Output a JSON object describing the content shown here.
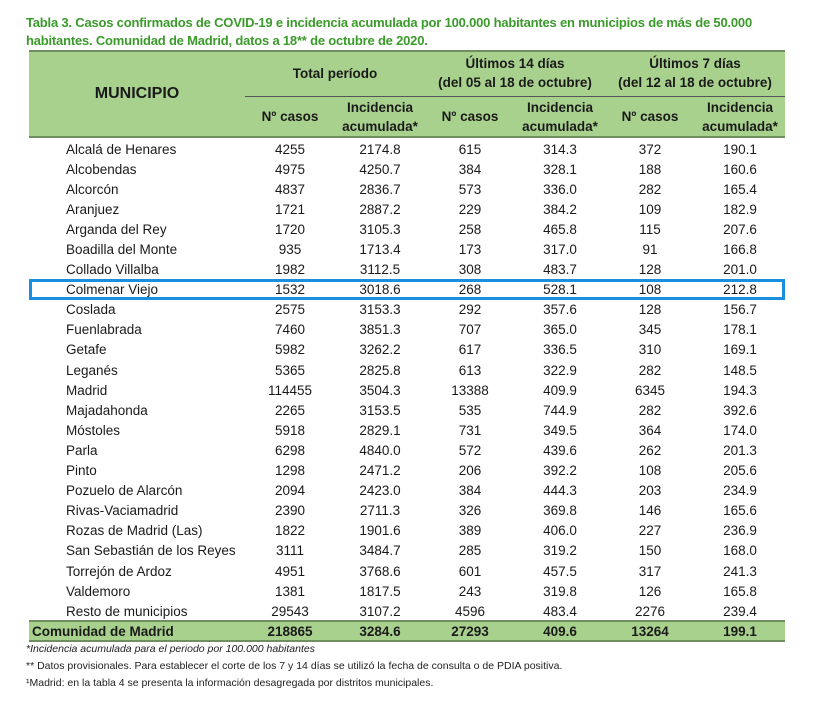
{
  "title": "Tabla 3. Casos confirmados de COVID-19 e incidencia acumulada por 100.000 habitantes en municipios de más de 50.000 habitantes. Comunidad de Madrid, datos a 18** de octubre de 2020.",
  "header": {
    "municipio": "MUNICIPIO",
    "group1": "Total período",
    "group2_line1": "Últimos 14 días",
    "group2_line2": "(del 05 al 18  de octubre)",
    "group3_line1": "Últimos 7 días",
    "group3_line2": "(del 12 al 18 de octubre)",
    "casos": "Nº casos",
    "incid_line1": "Incidencia",
    "incid_line2": "acumulada*"
  },
  "rows": [
    [
      "Alcalá de Henares",
      "4255",
      "2174.8",
      "615",
      "314.3",
      "372",
      "190.1"
    ],
    [
      "Alcobendas",
      "4975",
      "4250.7",
      "384",
      "328.1",
      "188",
      "160.6"
    ],
    [
      "Alcorcón",
      "4837",
      "2836.7",
      "573",
      "336.0",
      "282",
      "165.4"
    ],
    [
      "Aranjuez",
      "1721",
      "2887.2",
      "229",
      "384.2",
      "109",
      "182.9"
    ],
    [
      "Arganda del Rey",
      "1720",
      "3105.3",
      "258",
      "465.8",
      "115",
      "207.6"
    ],
    [
      "Boadilla del Monte",
      "935",
      "1713.4",
      "173",
      "317.0",
      "91",
      "166.8"
    ],
    [
      "Collado Villalba",
      "1982",
      "3112.5",
      "308",
      "483.7",
      "128",
      "201.0"
    ],
    [
      "Colmenar Viejo",
      "1532",
      "3018.6",
      "268",
      "528.1",
      "108",
      "212.8"
    ],
    [
      "Coslada",
      "2575",
      "3153.3",
      "292",
      "357.6",
      "128",
      "156.7"
    ],
    [
      "Fuenlabrada",
      "7460",
      "3851.3",
      "707",
      "365.0",
      "345",
      "178.1"
    ],
    [
      "Getafe",
      "5982",
      "3262.2",
      "617",
      "336.5",
      "310",
      "169.1"
    ],
    [
      "Leganés",
      "5365",
      "2825.8",
      "613",
      "322.9",
      "282",
      "148.5"
    ],
    [
      "Madrid",
      "114455",
      "3504.3",
      "13388",
      "409.9",
      "6345",
      "194.3"
    ],
    [
      "Majadahonda",
      "2265",
      "3153.5",
      "535",
      "744.9",
      "282",
      "392.6"
    ],
    [
      "Móstoles",
      "5918",
      "2829.1",
      "731",
      "349.5",
      "364",
      "174.0"
    ],
    [
      "Parla",
      "6298",
      "4840.0",
      "572",
      "439.6",
      "262",
      "201.3"
    ],
    [
      "Pinto",
      "1298",
      "2471.2",
      "206",
      "392.2",
      "108",
      "205.6"
    ],
    [
      "Pozuelo de Alarcón",
      "2094",
      "2423.0",
      "384",
      "444.3",
      "203",
      "234.9"
    ],
    [
      "Rivas-Vaciamadrid",
      "2390",
      "2711.3",
      "326",
      "369.8",
      "146",
      "165.6"
    ],
    [
      "Rozas de Madrid (Las)",
      "1822",
      "1901.6",
      "389",
      "406.0",
      "227",
      "236.9"
    ],
    [
      "San Sebastián de los Reyes",
      "3111",
      "3484.7",
      "285",
      "319.2",
      "150",
      "168.0"
    ],
    [
      "Torrejón de Ardoz",
      "4951",
      "3768.6",
      "601",
      "457.5",
      "317",
      "241.3"
    ],
    [
      "Valdemoro",
      "1381",
      "1817.5",
      "243",
      "319.8",
      "126",
      "165.8"
    ],
    [
      "Resto de municipios",
      "29543",
      "3107.2",
      "4596",
      "483.4",
      "2276",
      "239.4"
    ]
  ],
  "total": [
    "Comunidad de Madrid",
    "218865",
    "3284.6",
    "27293",
    "409.6",
    "13264",
    "199.1"
  ],
  "footnotes": [
    "*Incidencia acumulada para el periodo por 100.000 habitantes",
    "** Datos provisionales. Para establecer el corte de los 7 y 14 días se utilizó la fecha de consulta o de PDIA positiva.",
    "¹Madrid: en la tabla 4 se presenta la información desagregada por distritos municipales."
  ],
  "colors": {
    "header_bg": "#a9d18e",
    "title": "#3a9a2a",
    "highlight": "#1a8fe0"
  }
}
